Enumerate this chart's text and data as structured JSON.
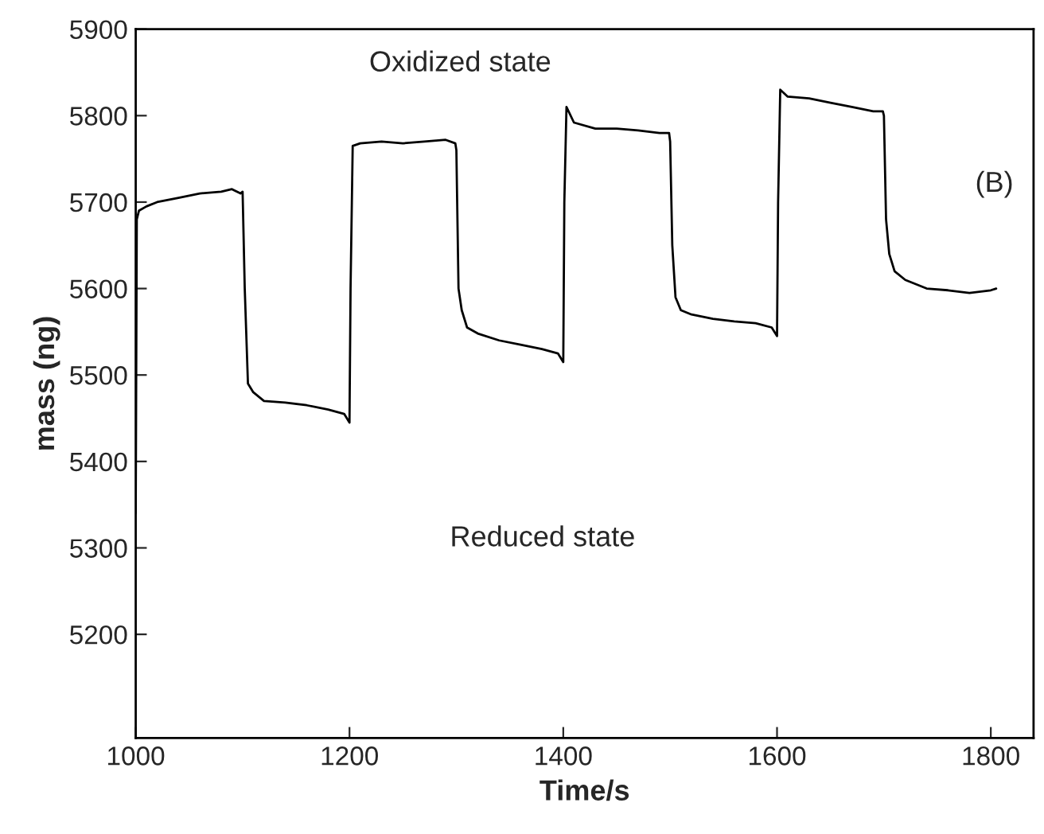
{
  "chart_data": {
    "type": "line",
    "xlabel": "Time/s",
    "ylabel": "mass (ng)",
    "annotations": [
      "Oxidized state",
      "Reduced state",
      "(B)"
    ],
    "xlim": [
      1000,
      1840
    ],
    "xticks": [
      1000,
      1200,
      1400,
      1600,
      1800
    ],
    "ylim": [
      5080,
      5900
    ],
    "yticks": [
      5200,
      5300,
      5400,
      5500,
      5600,
      5700,
      5800,
      5900
    ],
    "grid": false,
    "legend": false,
    "marker": "none",
    "line_style": "solid",
    "series": [
      {
        "color": "#000000",
        "x": [
          1000,
          1001,
          1003,
          1010,
          1020,
          1040,
          1060,
          1080,
          1090,
          1098,
          1100,
          1102,
          1105,
          1110,
          1120,
          1140,
          1160,
          1180,
          1195,
          1200,
          1201,
          1203,
          1210,
          1230,
          1250,
          1270,
          1290,
          1299,
          1300,
          1302,
          1305,
          1310,
          1320,
          1340,
          1360,
          1380,
          1395,
          1400,
          1401,
          1403,
          1410,
          1430,
          1450,
          1470,
          1490,
          1499,
          1500,
          1502,
          1505,
          1510,
          1520,
          1540,
          1560,
          1580,
          1595,
          1600,
          1601,
          1603,
          1610,
          1630,
          1650,
          1670,
          1690,
          1699,
          1700,
          1702,
          1705,
          1710,
          1720,
          1740,
          1760,
          1780,
          1800,
          1805
        ],
        "values": [
          5340,
          5680,
          5690,
          5695,
          5700,
          5705,
          5710,
          5712,
          5715,
          5710,
          5712,
          5600,
          5490,
          5480,
          5470,
          5468,
          5465,
          5460,
          5455,
          5445,
          5600,
          5765,
          5768,
          5770,
          5768,
          5770,
          5772,
          5768,
          5760,
          5600,
          5575,
          5555,
          5548,
          5540,
          5535,
          5530,
          5525,
          5515,
          5700,
          5810,
          5792,
          5785,
          5785,
          5783,
          5780,
          5780,
          5770,
          5650,
          5590,
          5575,
          5570,
          5565,
          5562,
          5560,
          5555,
          5545,
          5700,
          5830,
          5822,
          5820,
          5815,
          5810,
          5805,
          5805,
          5800,
          5680,
          5640,
          5620,
          5610,
          5600,
          5598,
          5595,
          5598,
          5600
        ]
      }
    ]
  }
}
